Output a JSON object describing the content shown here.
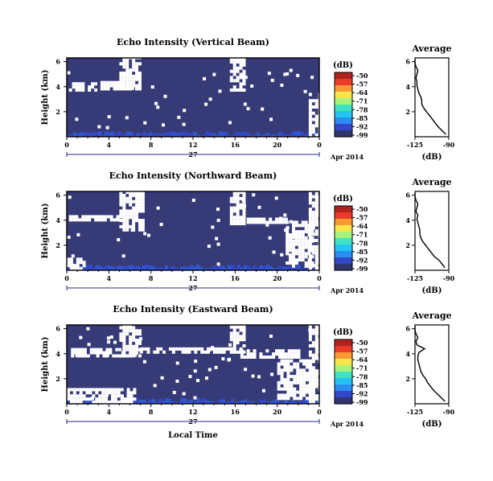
{
  "chart_data": [
    {
      "type": "heatmap",
      "title": "Echo Intensity (Vertical Beam)",
      "ylabel": "Height (km)",
      "yticks": [
        "6",
        "4",
        "2"
      ],
      "xticks": [
        "0",
        "4",
        "8",
        "12",
        "16",
        "20",
        "0"
      ],
      "date_day": "27",
      "date_month_year": "Apr 2014",
      "colorbar": {
        "unit": "(dB)",
        "ticks": [
          "-50",
          "-57",
          "-64",
          "-71",
          "-78",
          "-85",
          "-92",
          "-99"
        ]
      },
      "average": {
        "title": "Average",
        "xlabel": "(dB)",
        "xticks": [
          "-125",
          "-90"
        ],
        "yticks": [
          "6",
          "4",
          "2"
        ],
        "height_km": [
          0.2,
          0.5,
          0.8,
          1.1,
          1.4,
          1.7,
          2.0,
          2.3,
          2.6,
          2.9,
          3.2,
          3.5,
          3.8,
          4.1,
          4.4,
          4.7,
          5.0,
          5.3,
          5.6,
          5.9,
          6.2
        ],
        "db": [
          -93,
          -97,
          -101,
          -104,
          -107,
          -110,
          -113,
          -116,
          -118,
          -118,
          -119,
          -121,
          -122,
          -123,
          -123,
          -124,
          -123,
          -122,
          -124,
          -125,
          -125
        ]
      }
    },
    {
      "type": "heatmap",
      "title": "Echo Intensity (Northward Beam)",
      "ylabel": "Height (km)",
      "yticks": [
        "6",
        "4",
        "2"
      ],
      "xticks": [
        "0",
        "4",
        "8",
        "12",
        "16",
        "20",
        "0"
      ],
      "date_day": "27",
      "date_month_year": "Apr 2014",
      "colorbar": {
        "unit": "(dB)",
        "ticks": [
          "-50",
          "-57",
          "-64",
          "-71",
          "-78",
          "-85",
          "-92",
          "-99"
        ]
      },
      "average": {
        "title": "Average",
        "xlabel": "(dB)",
        "xticks": [
          "-125",
          "-90"
        ],
        "yticks": [
          "6",
          "4",
          "2"
        ],
        "height_km": [
          0.2,
          0.5,
          0.8,
          1.1,
          1.4,
          1.7,
          2.0,
          2.3,
          2.6,
          2.9,
          3.2,
          3.5,
          3.8,
          4.1,
          4.4,
          4.7,
          5.0,
          5.3,
          5.6,
          5.9,
          6.2
        ],
        "db": [
          -94,
          -97,
          -100,
          -105,
          -108,
          -111,
          -114,
          -117,
          -119,
          -120,
          -120,
          -121,
          -122,
          -123,
          -122,
          -124,
          -123,
          -122,
          -124,
          -125,
          -125
        ]
      }
    },
    {
      "type": "heatmap",
      "title": "Echo Intensity (Eastward Beam)",
      "ylabel": "Height (km)",
      "yticks": [
        "6",
        "4",
        "2"
      ],
      "xticks": [
        "0",
        "4",
        "8",
        "12",
        "16",
        "20",
        "0"
      ],
      "date_day": "27",
      "date_month_year": "Apr 2014",
      "xlabel": "Local Time",
      "colorbar": {
        "unit": "(dB)",
        "ticks": [
          "-50",
          "-57",
          "-64",
          "-71",
          "-78",
          "-85",
          "-92",
          "-99"
        ]
      },
      "average": {
        "title": "Average",
        "xlabel": "(dB)",
        "xticks": [
          "-125",
          "-90"
        ],
        "yticks": [
          "6",
          "4",
          "2"
        ],
        "height_km": [
          0.2,
          0.5,
          0.8,
          1.1,
          1.4,
          1.7,
          2.0,
          2.3,
          2.6,
          2.9,
          3.2,
          3.5,
          3.8,
          4.1,
          4.4,
          4.7,
          5.0,
          5.3,
          5.6,
          5.9,
          6.2
        ],
        "db": [
          -94,
          -98,
          -102,
          -106,
          -109,
          -112,
          -114,
          -117,
          -119,
          -120,
          -121,
          -122,
          -122,
          -121,
          -115,
          -123,
          -124,
          -122,
          -124,
          -125,
          -125
        ]
      }
    }
  ],
  "colors": {
    "background": "#363b78",
    "noise": "#3156d0",
    "colormap": [
      "#30356e",
      "#3347c8",
      "#2a8df0",
      "#24c4f0",
      "#3fe2c2",
      "#a6f37c",
      "#f7e64a",
      "#f89a34",
      "#ea3a2a",
      "#b0221e"
    ],
    "axis": "#000000",
    "white": "#ffffff"
  }
}
